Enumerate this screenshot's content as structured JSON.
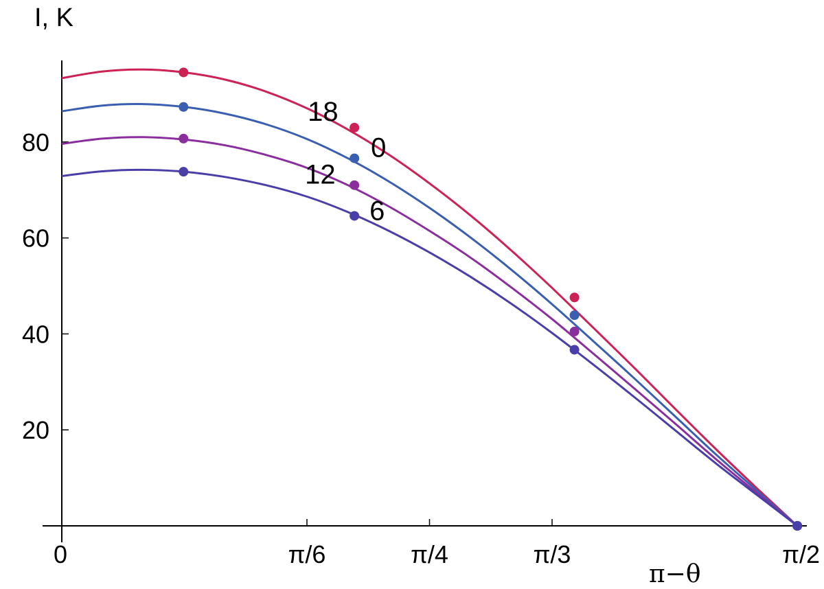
{
  "chart_data": {
    "type": "line",
    "title": "",
    "ylabel": "I, K",
    "xlabel": "π−θ",
    "xlim": [
      0,
      1.5708
    ],
    "ylim": [
      0,
      97
    ],
    "y_ticks": [
      {
        "value": 20,
        "label": "20"
      },
      {
        "value": 40,
        "label": "40"
      },
      {
        "value": 60,
        "label": "60"
      },
      {
        "value": 80,
        "label": "80"
      }
    ],
    "x_ticks": [
      {
        "value": 0,
        "label": "0"
      },
      {
        "value": 0.5236,
        "label": "π/6"
      },
      {
        "value": 0.7854,
        "label": "π/4"
      },
      {
        "value": 1.0472,
        "label": "π/3"
      },
      {
        "value": 1.5708,
        "label": "π/2"
      }
    ],
    "grid": false,
    "series": [
      {
        "name": "18",
        "color": "#cc2255",
        "x": [
          0,
          0.087,
          0.175,
          0.262,
          0.349,
          0.436,
          0.524,
          0.611,
          0.698,
          0.785,
          0.873,
          0.96,
          1.047,
          1.134,
          1.222,
          1.309,
          1.396,
          1.484,
          1.571
        ],
        "y": [
          93.3,
          94.7,
          95.1,
          94.5,
          93.0,
          90.5,
          87.0,
          82.6,
          77.4,
          71.4,
          64.7,
          57.4,
          49.6,
          41.4,
          33.0,
          24.5,
          16.1,
          7.9,
          0
        ],
        "markers": [
          {
            "x": 0.26,
            "y": 94.5
          },
          {
            "x": 0.625,
            "y": 83.0
          },
          {
            "x": 1.095,
            "y": 47.6
          },
          {
            "x": 1.571,
            "y": 0
          }
        ]
      },
      {
        "name": "0",
        "color": "#3a5fb0",
        "x": [
          0,
          0.087,
          0.175,
          0.262,
          0.349,
          0.436,
          0.524,
          0.611,
          0.698,
          0.785,
          0.873,
          0.96,
          1.047,
          1.134,
          1.222,
          1.309,
          1.396,
          1.484,
          1.571
        ],
        "y": [
          86.4,
          87.6,
          87.9,
          87.3,
          85.9,
          83.7,
          80.6,
          76.6,
          71.8,
          66.3,
          60.1,
          53.4,
          46.2,
          38.6,
          30.8,
          22.9,
          15.0,
          7.4,
          0
        ],
        "markers": [
          {
            "x": 0.26,
            "y": 87.3
          },
          {
            "x": 0.625,
            "y": 76.6
          },
          {
            "x": 1.095,
            "y": 43.9
          },
          {
            "x": 1.571,
            "y": 0
          }
        ]
      },
      {
        "name": "12",
        "color": "#8a2e9e",
        "x": [
          0,
          0.087,
          0.175,
          0.262,
          0.349,
          0.436,
          0.524,
          0.611,
          0.698,
          0.785,
          0.873,
          0.96,
          1.047,
          1.134,
          1.222,
          1.309,
          1.396,
          1.484,
          1.571
        ],
        "y": [
          79.6,
          80.7,
          81.0,
          80.5,
          79.3,
          77.3,
          74.6,
          71.0,
          66.6,
          61.5,
          55.9,
          49.7,
          43.1,
          36.0,
          28.7,
          21.4,
          14.0,
          6.9,
          0
        ],
        "markers": [
          {
            "x": 0.26,
            "y": 80.7
          },
          {
            "x": 0.625,
            "y": 71.0
          },
          {
            "x": 1.095,
            "y": 40.5
          },
          {
            "x": 1.571,
            "y": 0
          }
        ]
      },
      {
        "name": "6",
        "color": "#4a3fa8",
        "x": [
          0,
          0.087,
          0.175,
          0.262,
          0.349,
          0.436,
          0.524,
          0.611,
          0.698,
          0.785,
          0.873,
          0.96,
          1.047,
          1.134,
          1.222,
          1.309,
          1.396,
          1.484,
          1.571
        ],
        "y": [
          72.9,
          73.9,
          74.2,
          73.8,
          72.7,
          71.0,
          68.6,
          65.4,
          61.5,
          57.0,
          51.9,
          46.3,
          40.2,
          33.7,
          26.9,
          20.0,
          13.1,
          6.5,
          0
        ],
        "markers": [
          {
            "x": 0.26,
            "y": 73.8
          },
          {
            "x": 0.625,
            "y": 64.6
          },
          {
            "x": 1.095,
            "y": 36.7
          },
          {
            "x": 1.571,
            "y": 0
          }
        ]
      }
    ]
  }
}
